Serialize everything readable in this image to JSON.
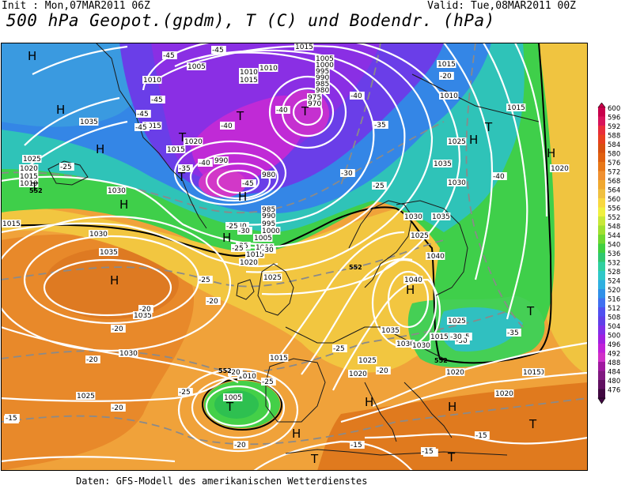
{
  "header": {
    "init": "Init : Mon,07MAR2011 06Z",
    "valid": "Valid: Tue,08MAR2011 00Z",
    "title": "500 hPa Geopot.(gpdm), T (C) und Bodendr. (hPa)"
  },
  "footer": "Daten: GFS-Modell des amerikanischen Wetterdienstes",
  "legend": {
    "levels": [
      "600",
      "596",
      "592",
      "588",
      "584",
      "580",
      "576",
      "572",
      "568",
      "564",
      "560",
      "556",
      "552",
      "548",
      "544",
      "540",
      "536",
      "532",
      "528",
      "524",
      "520",
      "516",
      "512",
      "508",
      "504",
      "500",
      "496",
      "492",
      "488",
      "484",
      "480",
      "476"
    ],
    "colors": [
      "#c8004a",
      "#d8145a",
      "#e82d3a",
      "#e84020",
      "#d85010",
      "#e06010",
      "#e87818",
      "#f09030",
      "#f0a830",
      "#f0c040",
      "#f8d840",
      "#f0f040",
      "#c8e838",
      "#a0e030",
      "#70d830",
      "#40d040",
      "#30c870",
      "#30d0a0",
      "#30c8c8",
      "#30b0e0",
      "#3090e8",
      "#4070f0",
      "#5050f0",
      "#6040e8",
      "#8030e8",
      "#a020e0",
      "#c020d8",
      "#d030c8",
      "#a018a0",
      "#801880",
      "#601060",
      "#400840"
    ]
  },
  "map": {
    "pressure_labels": [
      {
        "t": "1015"
      },
      {
        "t": "1005"
      },
      {
        "t": "1010"
      },
      {
        "t": "1015"
      },
      {
        "t": "1010"
      },
      {
        "t": "1005"
      },
      {
        "t": "1000"
      },
      {
        "t": "995"
      },
      {
        "t": "990"
      },
      {
        "t": "985"
      },
      {
        "t": "980"
      },
      {
        "t": "975"
      },
      {
        "t": "970"
      },
      {
        "t": "1010"
      },
      {
        "t": "1015"
      },
      {
        "t": "1035"
      },
      {
        "t": "1025"
      },
      {
        "t": "1020"
      },
      {
        "t": "1015"
      },
      {
        "t": "1010"
      },
      {
        "t": "1030"
      },
      {
        "t": "1015"
      },
      {
        "t": "1020"
      },
      {
        "t": "1015"
      },
      {
        "t": "990"
      },
      {
        "t": "980"
      },
      {
        "t": "985"
      },
      {
        "t": "990"
      },
      {
        "t": "995"
      },
      {
        "t": "1000"
      },
      {
        "t": "1005"
      },
      {
        "t": "1010"
      },
      {
        "t": "1015"
      },
      {
        "t": "1020"
      },
      {
        "t": "1025"
      },
      {
        "t": "1030"
      },
      {
        "t": "1035"
      },
      {
        "t": "1035"
      },
      {
        "t": "1030"
      },
      {
        "t": "1025"
      },
      {
        "t": "1030"
      },
      {
        "t": "1025"
      },
      {
        "t": "1010"
      },
      {
        "t": "1005"
      },
      {
        "t": "1015"
      },
      {
        "t": "1020"
      },
      {
        "t": "1025"
      },
      {
        "t": "1030"
      },
      {
        "t": "1035"
      },
      {
        "t": "1030"
      },
      {
        "t": "1035"
      },
      {
        "t": "1040"
      },
      {
        "t": "1040"
      },
      {
        "t": "1025"
      },
      {
        "t": "1020"
      },
      {
        "t": "1015"
      },
      {
        "t": "1010"
      },
      {
        "t": "1015"
      },
      {
        "t": "1010"
      },
      {
        "t": "1020"
      },
      {
        "t": "1015"
      },
      {
        "t": "1020"
      },
      {
        "t": "1025"
      },
      {
        "t": "1030"
      },
      {
        "t": "1035"
      },
      {
        "t": "1015"
      }
    ],
    "temp_labels": [
      {
        "t": "-45"
      },
      {
        "t": "-45"
      },
      {
        "t": "-45"
      },
      {
        "t": "-40"
      },
      {
        "t": "-45"
      },
      {
        "t": "-40"
      },
      {
        "t": "-40"
      },
      {
        "t": "-35"
      },
      {
        "t": "-35"
      },
      {
        "t": "-40"
      },
      {
        "t": "-30"
      },
      {
        "t": "-25"
      },
      {
        "t": "-25"
      },
      {
        "t": "-45"
      },
      {
        "t": "-45"
      },
      {
        "t": "-40"
      },
      {
        "t": "-35"
      },
      {
        "t": "-30"
      },
      {
        "t": "-25"
      },
      {
        "t": "-20"
      },
      {
        "t": "-30"
      },
      {
        "t": "-25"
      },
      {
        "t": "-20"
      },
      {
        "t": "-20"
      },
      {
        "t": "-20"
      },
      {
        "t": "-20"
      },
      {
        "t": "-25"
      },
      {
        "t": "-25"
      },
      {
        "t": "-20"
      },
      {
        "t": "-25"
      },
      {
        "t": "-20"
      },
      {
        "t": "-15"
      },
      {
        "t": "-20"
      },
      {
        "t": "-15"
      },
      {
        "t": "-15"
      },
      {
        "t": "-35"
      },
      {
        "t": "-30"
      },
      {
        "t": "-35"
      },
      {
        "t": "-40"
      },
      {
        "t": "-30"
      },
      {
        "t": "-25"
      },
      {
        "t": "-20"
      },
      {
        "t": "-15"
      },
      {
        "t": "-15"
      },
      {
        "t": "-15"
      }
    ],
    "centers": [
      {
        "t": "H"
      },
      {
        "t": "H"
      },
      {
        "t": "H"
      },
      {
        "t": "T"
      },
      {
        "t": "T"
      },
      {
        "t": "H"
      },
      {
        "t": "T"
      },
      {
        "t": "T"
      },
      {
        "t": "H"
      },
      {
        "t": "H"
      },
      {
        "t": "T"
      },
      {
        "t": "H"
      },
      {
        "t": "T"
      },
      {
        "t": "H"
      },
      {
        "t": "T"
      },
      {
        "t": "T"
      },
      {
        "t": "H"
      },
      {
        "t": "H"
      },
      {
        "t": "T"
      },
      {
        "t": "H"
      },
      {
        "t": "H"
      },
      {
        "t": "T"
      },
      {
        "t": "H"
      },
      {
        "t": "T"
      }
    ],
    "highlight_labels": [
      {
        "t": "552"
      },
      {
        "t": "552"
      },
      {
        "t": "552"
      },
      {
        "t": "552"
      }
    ]
  }
}
